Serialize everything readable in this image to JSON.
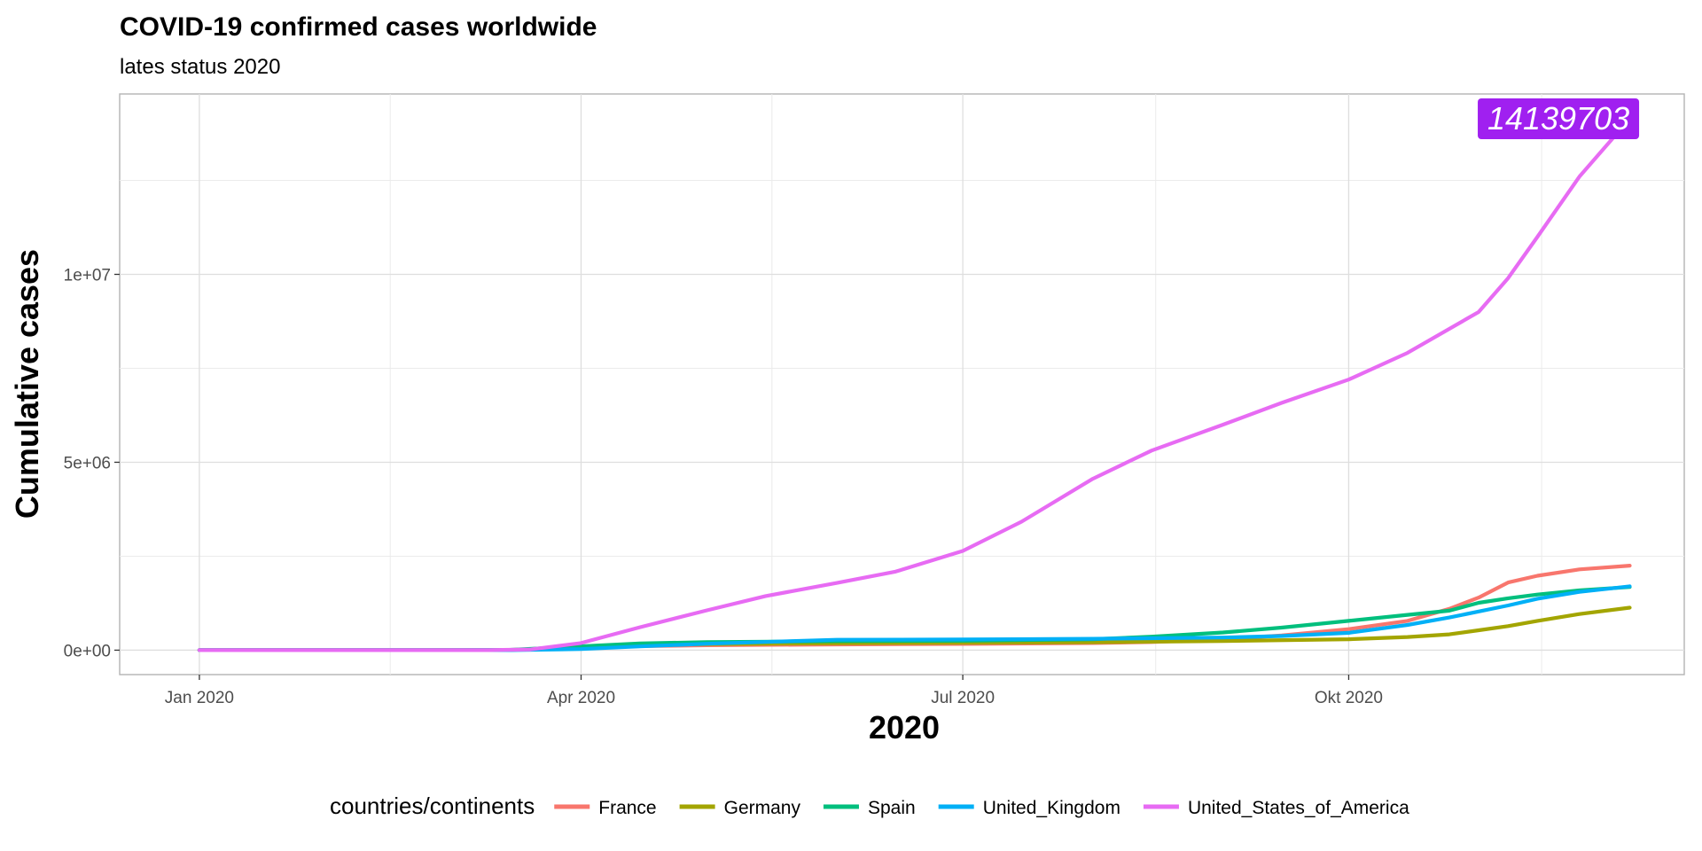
{
  "chart_data": {
    "type": "line",
    "title": "COVID-19 confirmed cases worldwide",
    "subtitle": "lates status 2020",
    "xlabel": "2020",
    "ylabel": "Cumulative cases",
    "x_ticks": [
      {
        "date": "2020-01-01",
        "label": "Jan 2020"
      },
      {
        "date": "2020-04-01",
        "label": "Apr 2020"
      },
      {
        "date": "2020-07-01",
        "label": "Jul 2020"
      },
      {
        "date": "2020-10-01",
        "label": "Okt 2020"
      }
    ],
    "y_ticks": [
      {
        "value": 0,
        "label": "0e+00"
      },
      {
        "value": 5000000,
        "label": "5e+06"
      },
      {
        "value": 10000000,
        "label": "1e+07"
      }
    ],
    "xlim": [
      "2019-12-13",
      "2020-12-20"
    ],
    "ylim": [
      -650000,
      14800000
    ],
    "grid": true,
    "legend": {
      "title": "countries/continents",
      "position": "bottom"
    },
    "annotation": {
      "text": "14139703",
      "date": "2020-11-20",
      "value": 14139703,
      "color": "#A020F0"
    },
    "series": [
      {
        "name": "France",
        "color": "#F8766D",
        "points": [
          [
            "2020-01-01",
            0
          ],
          [
            "2020-02-28",
            100
          ],
          [
            "2020-03-15",
            5400
          ],
          [
            "2020-04-01",
            57000
          ],
          [
            "2020-04-15",
            106000
          ],
          [
            "2020-05-01",
            130000
          ],
          [
            "2020-06-01",
            151000
          ],
          [
            "2020-07-01",
            165000
          ],
          [
            "2020-08-01",
            190000
          ],
          [
            "2020-08-15",
            215000
          ],
          [
            "2020-09-01",
            290000
          ],
          [
            "2020-09-15",
            390000
          ],
          [
            "2020-10-01",
            560000
          ],
          [
            "2020-10-15",
            780000
          ],
          [
            "2020-10-25",
            1100000
          ],
          [
            "2020-11-01",
            1400000
          ],
          [
            "2020-11-08",
            1800000
          ],
          [
            "2020-11-15",
            1980000
          ],
          [
            "2020-11-25",
            2150000
          ],
          [
            "2020-12-07",
            2250000
          ]
        ]
      },
      {
        "name": "Germany",
        "color": "#A3A500",
        "points": [
          [
            "2020-01-01",
            0
          ],
          [
            "2020-02-28",
            50
          ],
          [
            "2020-03-15",
            5800
          ],
          [
            "2020-04-01",
            71000
          ],
          [
            "2020-04-15",
            130000
          ],
          [
            "2020-05-01",
            161000
          ],
          [
            "2020-06-01",
            182000
          ],
          [
            "2020-07-01",
            195000
          ],
          [
            "2020-08-01",
            210000
          ],
          [
            "2020-09-01",
            244000
          ],
          [
            "2020-10-01",
            292000
          ],
          [
            "2020-10-15",
            350000
          ],
          [
            "2020-10-25",
            420000
          ],
          [
            "2020-11-01",
            530000
          ],
          [
            "2020-11-08",
            640000
          ],
          [
            "2020-11-15",
            780000
          ],
          [
            "2020-11-25",
            960000
          ],
          [
            "2020-12-07",
            1130000
          ]
        ]
      },
      {
        "name": "Spain",
        "color": "#00BF7D",
        "points": [
          [
            "2020-01-01",
            0
          ],
          [
            "2020-02-28",
            30
          ],
          [
            "2020-03-15",
            7800
          ],
          [
            "2020-04-01",
            102000
          ],
          [
            "2020-04-15",
            177000
          ],
          [
            "2020-05-01",
            215000
          ],
          [
            "2020-06-01",
            239000
          ],
          [
            "2020-07-01",
            250000
          ],
          [
            "2020-08-01",
            290000
          ],
          [
            "2020-08-15",
            360000
          ],
          [
            "2020-09-01",
            470000
          ],
          [
            "2020-09-15",
            600000
          ],
          [
            "2020-10-01",
            780000
          ],
          [
            "2020-10-15",
            940000
          ],
          [
            "2020-10-25",
            1050000
          ],
          [
            "2020-11-01",
            1260000
          ],
          [
            "2020-11-08",
            1380000
          ],
          [
            "2020-11-15",
            1480000
          ],
          [
            "2020-11-25",
            1590000
          ],
          [
            "2020-12-07",
            1680000
          ]
        ]
      },
      {
        "name": "United_Kingdom",
        "color": "#00B0F6",
        "points": [
          [
            "2020-01-01",
            0
          ],
          [
            "2020-02-28",
            20
          ],
          [
            "2020-03-15",
            1400
          ],
          [
            "2020-04-01",
            29000
          ],
          [
            "2020-04-15",
            99000
          ],
          [
            "2020-05-01",
            172000
          ],
          [
            "2020-06-01",
            276000
          ],
          [
            "2020-07-01",
            285000
          ],
          [
            "2020-08-01",
            303000
          ],
          [
            "2020-08-15",
            316000
          ],
          [
            "2020-09-01",
            336000
          ],
          [
            "2020-09-15",
            375000
          ],
          [
            "2020-10-01",
            460000
          ],
          [
            "2020-10-15",
            670000
          ],
          [
            "2020-10-25",
            870000
          ],
          [
            "2020-11-01",
            1030000
          ],
          [
            "2020-11-08",
            1190000
          ],
          [
            "2020-11-15",
            1370000
          ],
          [
            "2020-11-25",
            1550000
          ],
          [
            "2020-12-07",
            1700000
          ]
        ]
      },
      {
        "name": "United_States_of_America",
        "color": "#E76BF3",
        "points": [
          [
            "2020-01-01",
            0
          ],
          [
            "2020-02-28",
            60
          ],
          [
            "2020-03-10",
            1000
          ],
          [
            "2020-03-20",
            19000
          ],
          [
            "2020-04-01",
            190000
          ],
          [
            "2020-04-15",
            610000
          ],
          [
            "2020-05-01",
            1060000
          ],
          [
            "2020-05-15",
            1440000
          ],
          [
            "2020-06-01",
            1790000
          ],
          [
            "2020-06-15",
            2090000
          ],
          [
            "2020-07-01",
            2640000
          ],
          [
            "2020-07-15",
            3420000
          ],
          [
            "2020-08-01",
            4560000
          ],
          [
            "2020-08-15",
            5310000
          ],
          [
            "2020-09-01",
            6000000
          ],
          [
            "2020-09-15",
            6580000
          ],
          [
            "2020-10-01",
            7200000
          ],
          [
            "2020-10-15",
            7910000
          ],
          [
            "2020-11-01",
            9000000
          ],
          [
            "2020-11-08",
            9900000
          ],
          [
            "2020-11-15",
            11000000
          ],
          [
            "2020-11-25",
            12600000
          ],
          [
            "2020-12-07",
            14139703
          ]
        ]
      }
    ]
  }
}
